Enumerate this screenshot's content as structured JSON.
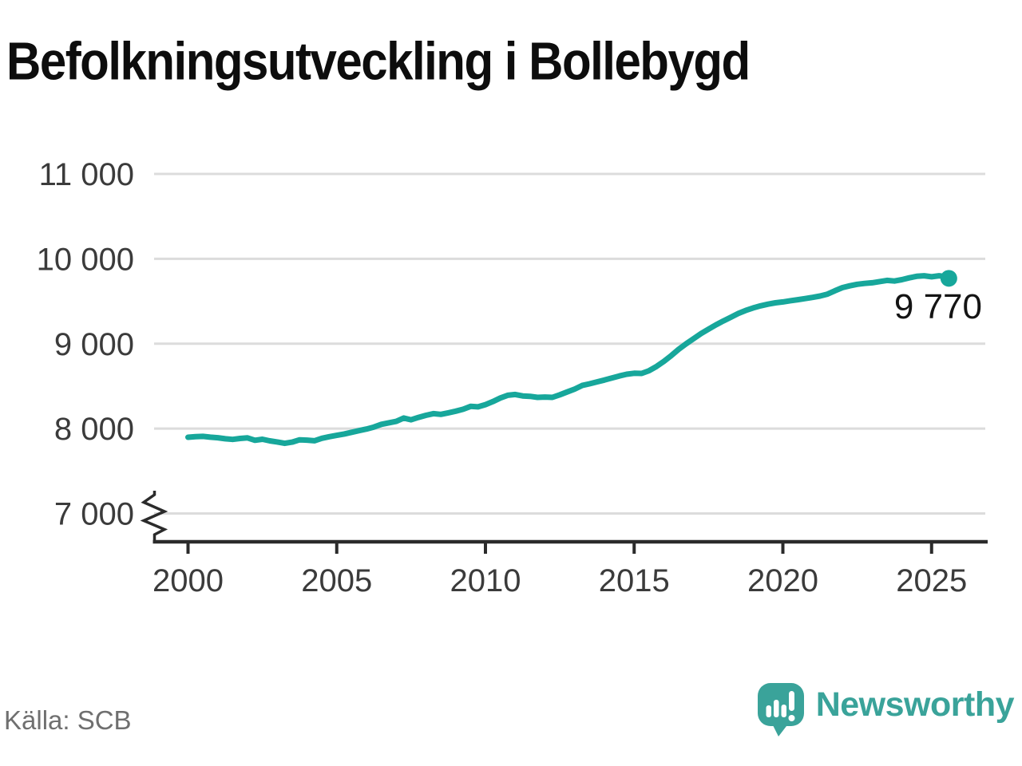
{
  "title": "Befolkningsutveckling i Bollebygd",
  "footer": {
    "source": "Källa: SCB",
    "brand": "Newsworthy"
  },
  "colors": {
    "line": "#17a79b",
    "end_dot": "#17a79b",
    "grid": "#dcdcdc",
    "axis": "#2b2b2b",
    "tick_text": "#3b3b3b",
    "end_label_text": "#141414",
    "source_text": "#6f6f6f",
    "brand_teal": "#3aa39a",
    "background": "#ffffff"
  },
  "chart_data": {
    "type": "line",
    "title": "Befolkningsutveckling i Bollebygd",
    "xlabel": "",
    "ylabel": "",
    "grid": true,
    "legend": "none",
    "axis_break_at_bottom": true,
    "ylim": [
      7000,
      11000
    ],
    "xlim": [
      2000,
      2026.8
    ],
    "yticks": [
      7000,
      8000,
      9000,
      10000,
      11000
    ],
    "ytick_labels": [
      "7 000",
      "8 000",
      "9 000",
      "10 000",
      "11 000"
    ],
    "xticks": [
      2000,
      2005,
      2010,
      2015,
      2020,
      2025
    ],
    "xtick_labels": [
      "2000",
      "2005",
      "2010",
      "2015",
      "2020",
      "2025"
    ],
    "end_label": "9 770",
    "end_value": 9770,
    "points": [
      [
        2000.0,
        7898
      ],
      [
        2000.25,
        7904
      ],
      [
        2000.5,
        7908
      ],
      [
        2000.75,
        7899
      ],
      [
        2001.0,
        7892
      ],
      [
        2001.25,
        7880
      ],
      [
        2001.5,
        7872
      ],
      [
        2001.75,
        7884
      ],
      [
        2002.0,
        7890
      ],
      [
        2002.25,
        7862
      ],
      [
        2002.5,
        7874
      ],
      [
        2002.75,
        7855
      ],
      [
        2003.0,
        7842
      ],
      [
        2003.25,
        7826
      ],
      [
        2003.5,
        7840
      ],
      [
        2003.75,
        7868
      ],
      [
        2004.0,
        7864
      ],
      [
        2004.25,
        7856
      ],
      [
        2004.5,
        7886
      ],
      [
        2004.75,
        7904
      ],
      [
        2005.0,
        7920
      ],
      [
        2005.25,
        7936
      ],
      [
        2005.5,
        7956
      ],
      [
        2005.75,
        7976
      ],
      [
        2006.0,
        7995
      ],
      [
        2006.25,
        8018
      ],
      [
        2006.5,
        8050
      ],
      [
        2006.75,
        8068
      ],
      [
        2007.0,
        8085
      ],
      [
        2007.25,
        8124
      ],
      [
        2007.5,
        8104
      ],
      [
        2007.75,
        8132
      ],
      [
        2008.0,
        8156
      ],
      [
        2008.25,
        8176
      ],
      [
        2008.5,
        8168
      ],
      [
        2008.75,
        8185
      ],
      [
        2009.0,
        8205
      ],
      [
        2009.25,
        8228
      ],
      [
        2009.5,
        8262
      ],
      [
        2009.75,
        8256
      ],
      [
        2010.0,
        8282
      ],
      [
        2010.25,
        8318
      ],
      [
        2010.5,
        8360
      ],
      [
        2010.75,
        8392
      ],
      [
        2011.0,
        8402
      ],
      [
        2011.25,
        8385
      ],
      [
        2011.5,
        8380
      ],
      [
        2011.75,
        8368
      ],
      [
        2012.0,
        8372
      ],
      [
        2012.25,
        8368
      ],
      [
        2012.5,
        8398
      ],
      [
        2012.75,
        8432
      ],
      [
        2013.0,
        8466
      ],
      [
        2013.25,
        8508
      ],
      [
        2013.5,
        8528
      ],
      [
        2013.75,
        8550
      ],
      [
        2014.0,
        8572
      ],
      [
        2014.25,
        8596
      ],
      [
        2014.5,
        8620
      ],
      [
        2014.75,
        8640
      ],
      [
        2015.0,
        8652
      ],
      [
        2015.25,
        8650
      ],
      [
        2015.5,
        8682
      ],
      [
        2015.75,
        8732
      ],
      [
        2016.0,
        8792
      ],
      [
        2016.25,
        8860
      ],
      [
        2016.5,
        8935
      ],
      [
        2016.75,
        9000
      ],
      [
        2017.0,
        9060
      ],
      [
        2017.25,
        9120
      ],
      [
        2017.5,
        9172
      ],
      [
        2017.75,
        9222
      ],
      [
        2018.0,
        9268
      ],
      [
        2018.25,
        9312
      ],
      [
        2018.5,
        9356
      ],
      [
        2018.75,
        9392
      ],
      [
        2019.0,
        9422
      ],
      [
        2019.25,
        9446
      ],
      [
        2019.5,
        9466
      ],
      [
        2019.75,
        9482
      ],
      [
        2020.0,
        9492
      ],
      [
        2020.25,
        9506
      ],
      [
        2020.5,
        9518
      ],
      [
        2020.75,
        9532
      ],
      [
        2021.0,
        9546
      ],
      [
        2021.25,
        9562
      ],
      [
        2021.5,
        9584
      ],
      [
        2021.75,
        9624
      ],
      [
        2022.0,
        9660
      ],
      [
        2022.25,
        9682
      ],
      [
        2022.5,
        9700
      ],
      [
        2022.75,
        9710
      ],
      [
        2023.0,
        9718
      ],
      [
        2023.25,
        9732
      ],
      [
        2023.5,
        9746
      ],
      [
        2023.75,
        9738
      ],
      [
        2024.0,
        9754
      ],
      [
        2024.25,
        9776
      ],
      [
        2024.5,
        9794
      ],
      [
        2024.75,
        9800
      ],
      [
        2025.0,
        9788
      ],
      [
        2025.25,
        9800
      ],
      [
        2025.5,
        9788
      ],
      [
        2025.58,
        9770
      ]
    ]
  }
}
